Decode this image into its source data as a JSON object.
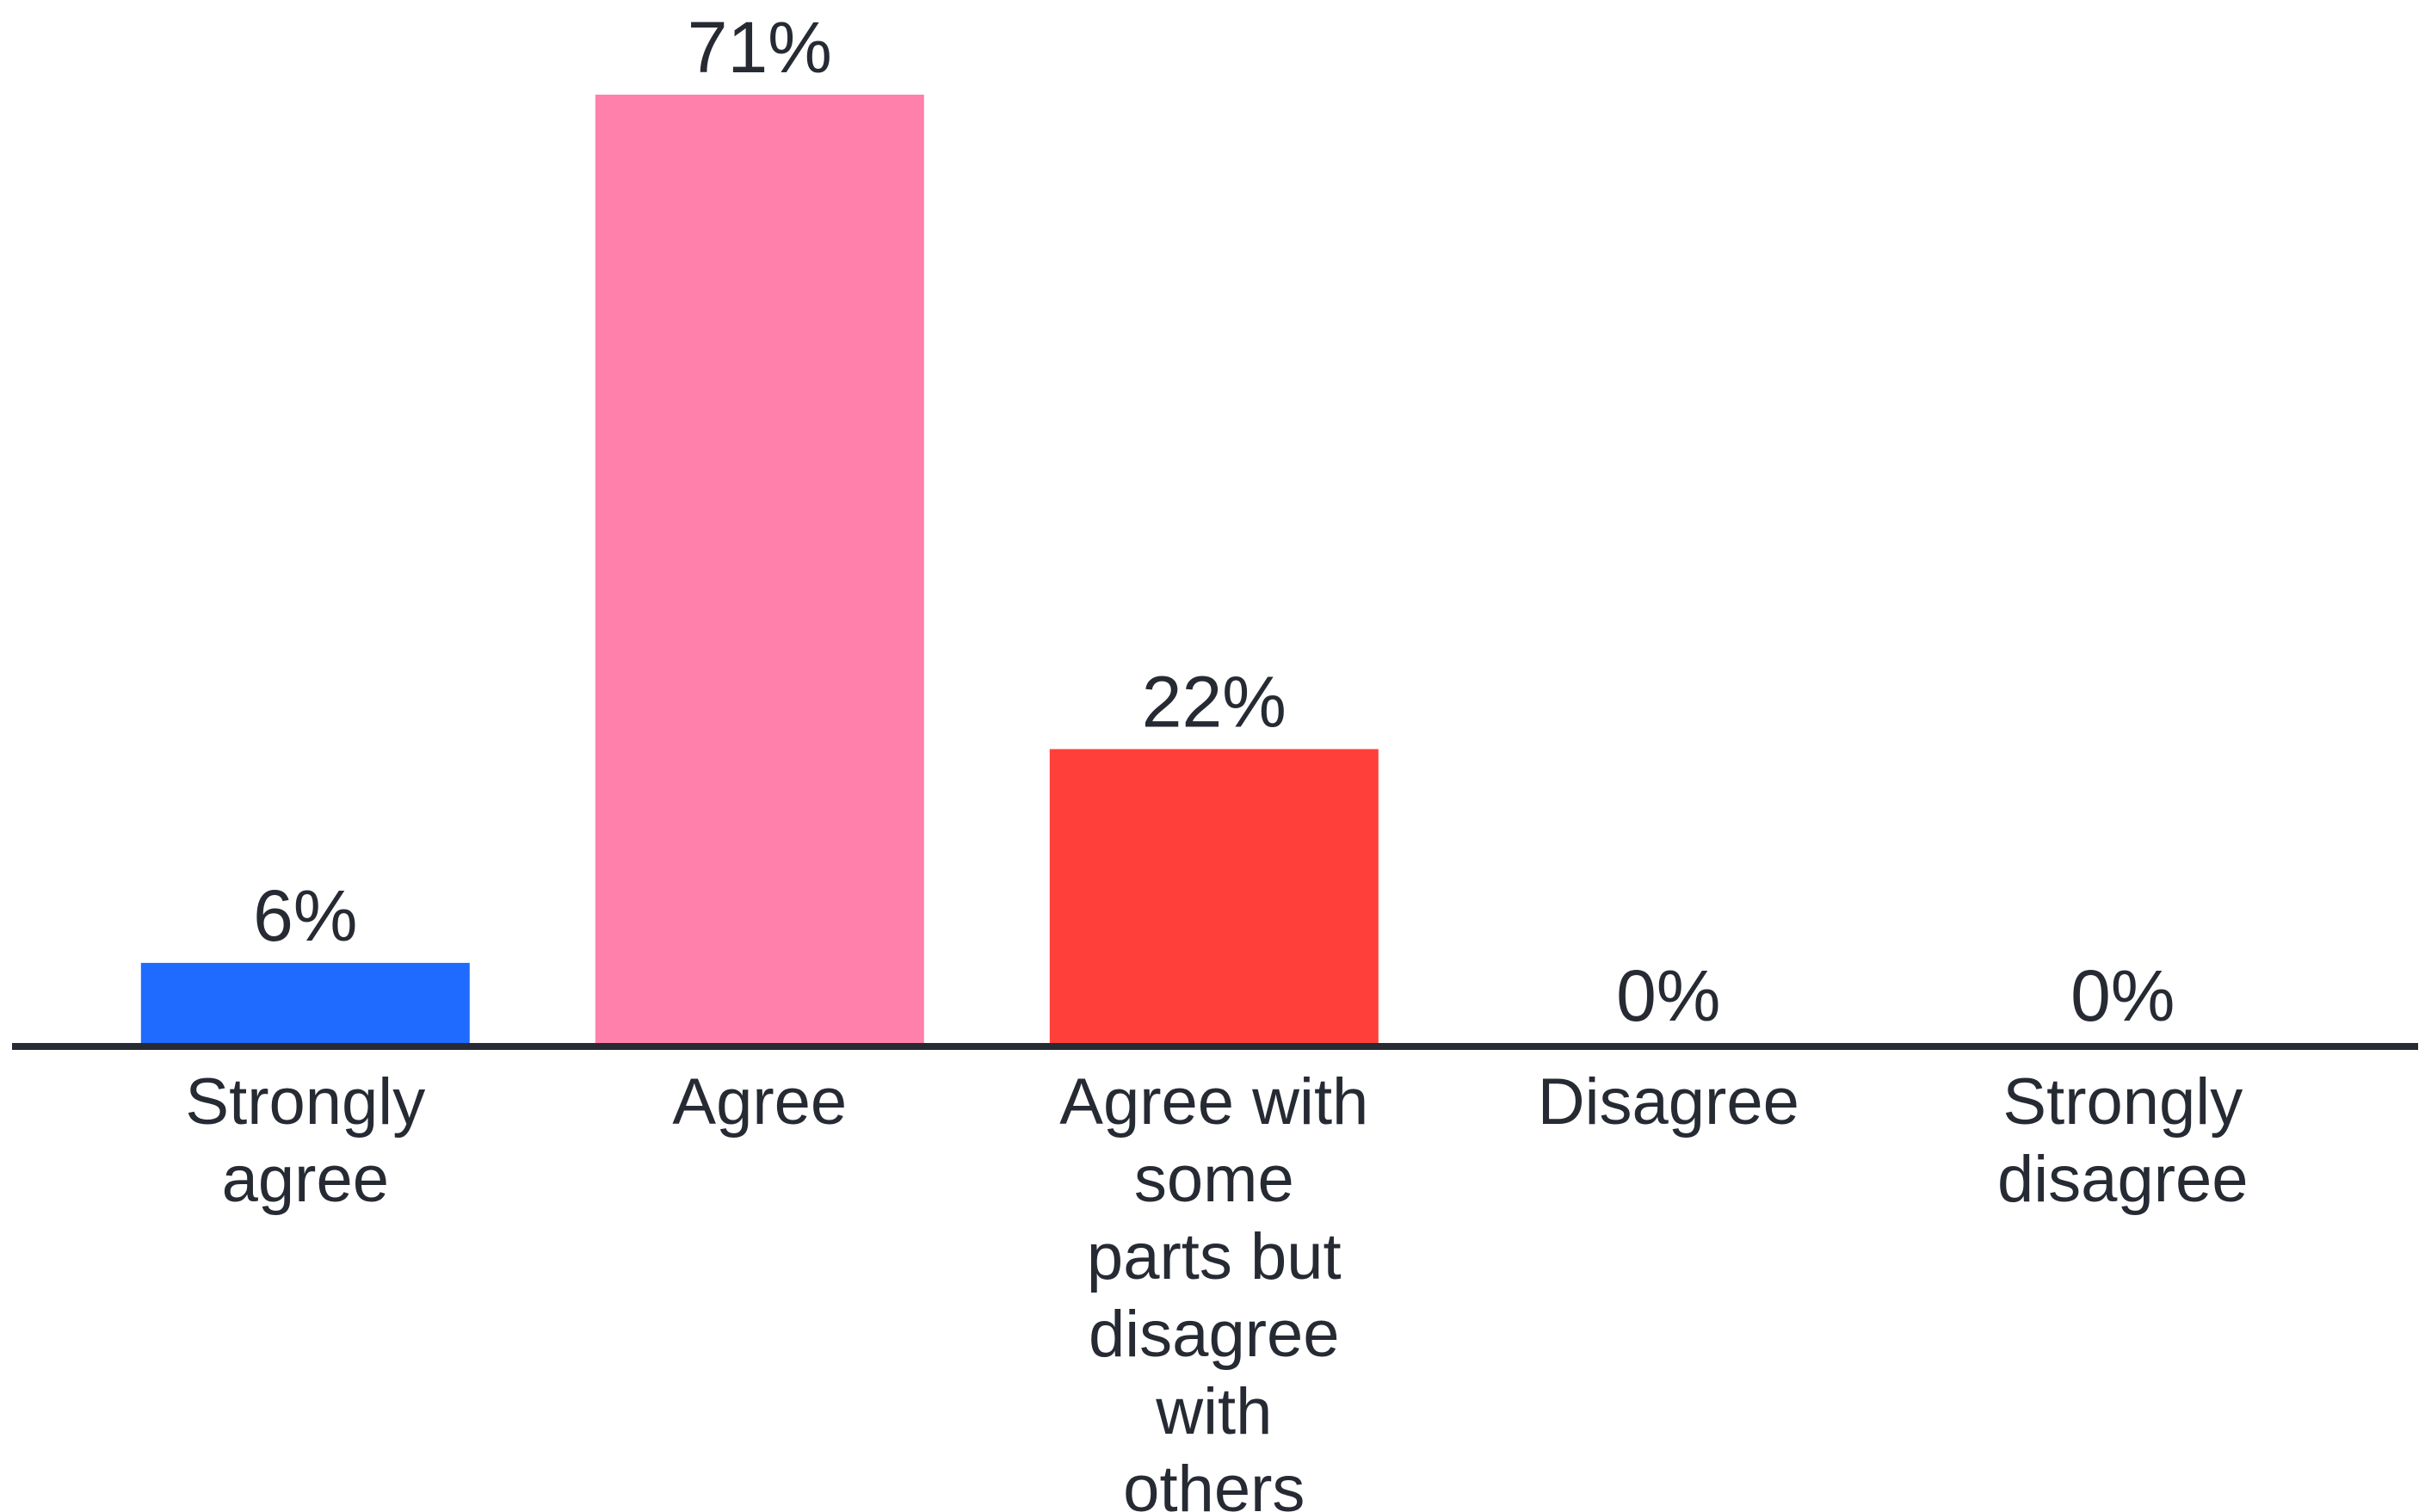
{
  "chart_data": {
    "type": "bar",
    "categories": [
      "Strongly agree",
      "Agree",
      "Agree with some parts but disagree with others",
      "Disagree",
      "Strongly disagree"
    ],
    "category_label_lines": [
      [
        "Strongly",
        "agree"
      ],
      [
        "Agree"
      ],
      [
        "Agree with",
        "some",
        "parts but",
        "disagree",
        "with",
        "others"
      ],
      [
        "Disagree"
      ],
      [
        "Strongly",
        "disagree"
      ]
    ],
    "values": [
      6,
      71,
      22,
      0,
      0
    ],
    "value_labels": [
      "6%",
      "71%",
      "22%",
      "0%",
      "0%"
    ],
    "colors": [
      "#1f6bff",
      "#ff80aa",
      "#ff403a",
      "#ffffff",
      "#ffffff"
    ],
    "axis_color": "#262a33",
    "text_color": "#262a33",
    "ylim": [
      0,
      71
    ],
    "grid": false,
    "legend": "none"
  }
}
